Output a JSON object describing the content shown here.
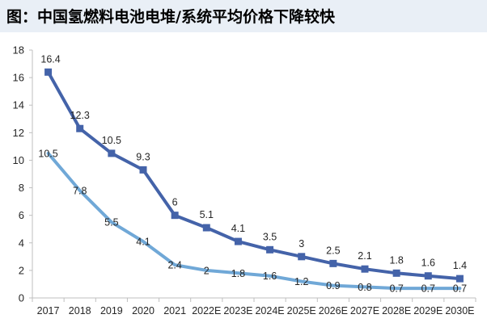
{
  "title": "图：中国氢燃料电池电堆/系统平均价格下降较快",
  "colors": {
    "series_dark": "#4463a9",
    "series_light": "#70a8d7",
    "axis": "#bfbfbf",
    "text": "#262626",
    "title_bg": "#e9eff6"
  },
  "chart_data": {
    "type": "line",
    "categories": [
      "2017",
      "2018",
      "2019",
      "2020",
      "2021",
      "2022E",
      "2023E",
      "2024E",
      "2025E",
      "2026E",
      "2027E",
      "2028E",
      "2029E",
      "2030E"
    ],
    "ylim": [
      0,
      18
    ],
    "yticks": [
      0,
      2,
      4,
      6,
      8,
      10,
      12,
      14,
      16,
      18
    ],
    "grid": false,
    "legend": "none",
    "series": [
      {
        "values": [
          16.4,
          12.3,
          10.5,
          9.3,
          6,
          5.1,
          4.1,
          3.5,
          3,
          2.5,
          2.1,
          1.8,
          1.6,
          1.4
        ],
        "labels": [
          "16.4",
          "12.3",
          "10.5",
          "9.3",
          "6",
          "5.1",
          "4.1",
          "3.5",
          "3",
          "2.5",
          "2.1",
          "1.8",
          "1.6",
          "1.4"
        ],
        "marker": "square",
        "color_key": "series_dark"
      },
      {
        "values": [
          10.5,
          7.8,
          5.5,
          4.1,
          2.4,
          2,
          1.8,
          1.6,
          1.2,
          0.9,
          0.8,
          0.7,
          0.7,
          0.7
        ],
        "labels": [
          "10.5",
          "7.8",
          "5.5",
          "4.1",
          "2.4",
          "2",
          "1.8",
          "1.6",
          "1.2",
          "0.9",
          "0.8",
          "0.7",
          "0.7",
          "0.7"
        ],
        "marker": "none",
        "color_key": "series_light"
      }
    ]
  }
}
